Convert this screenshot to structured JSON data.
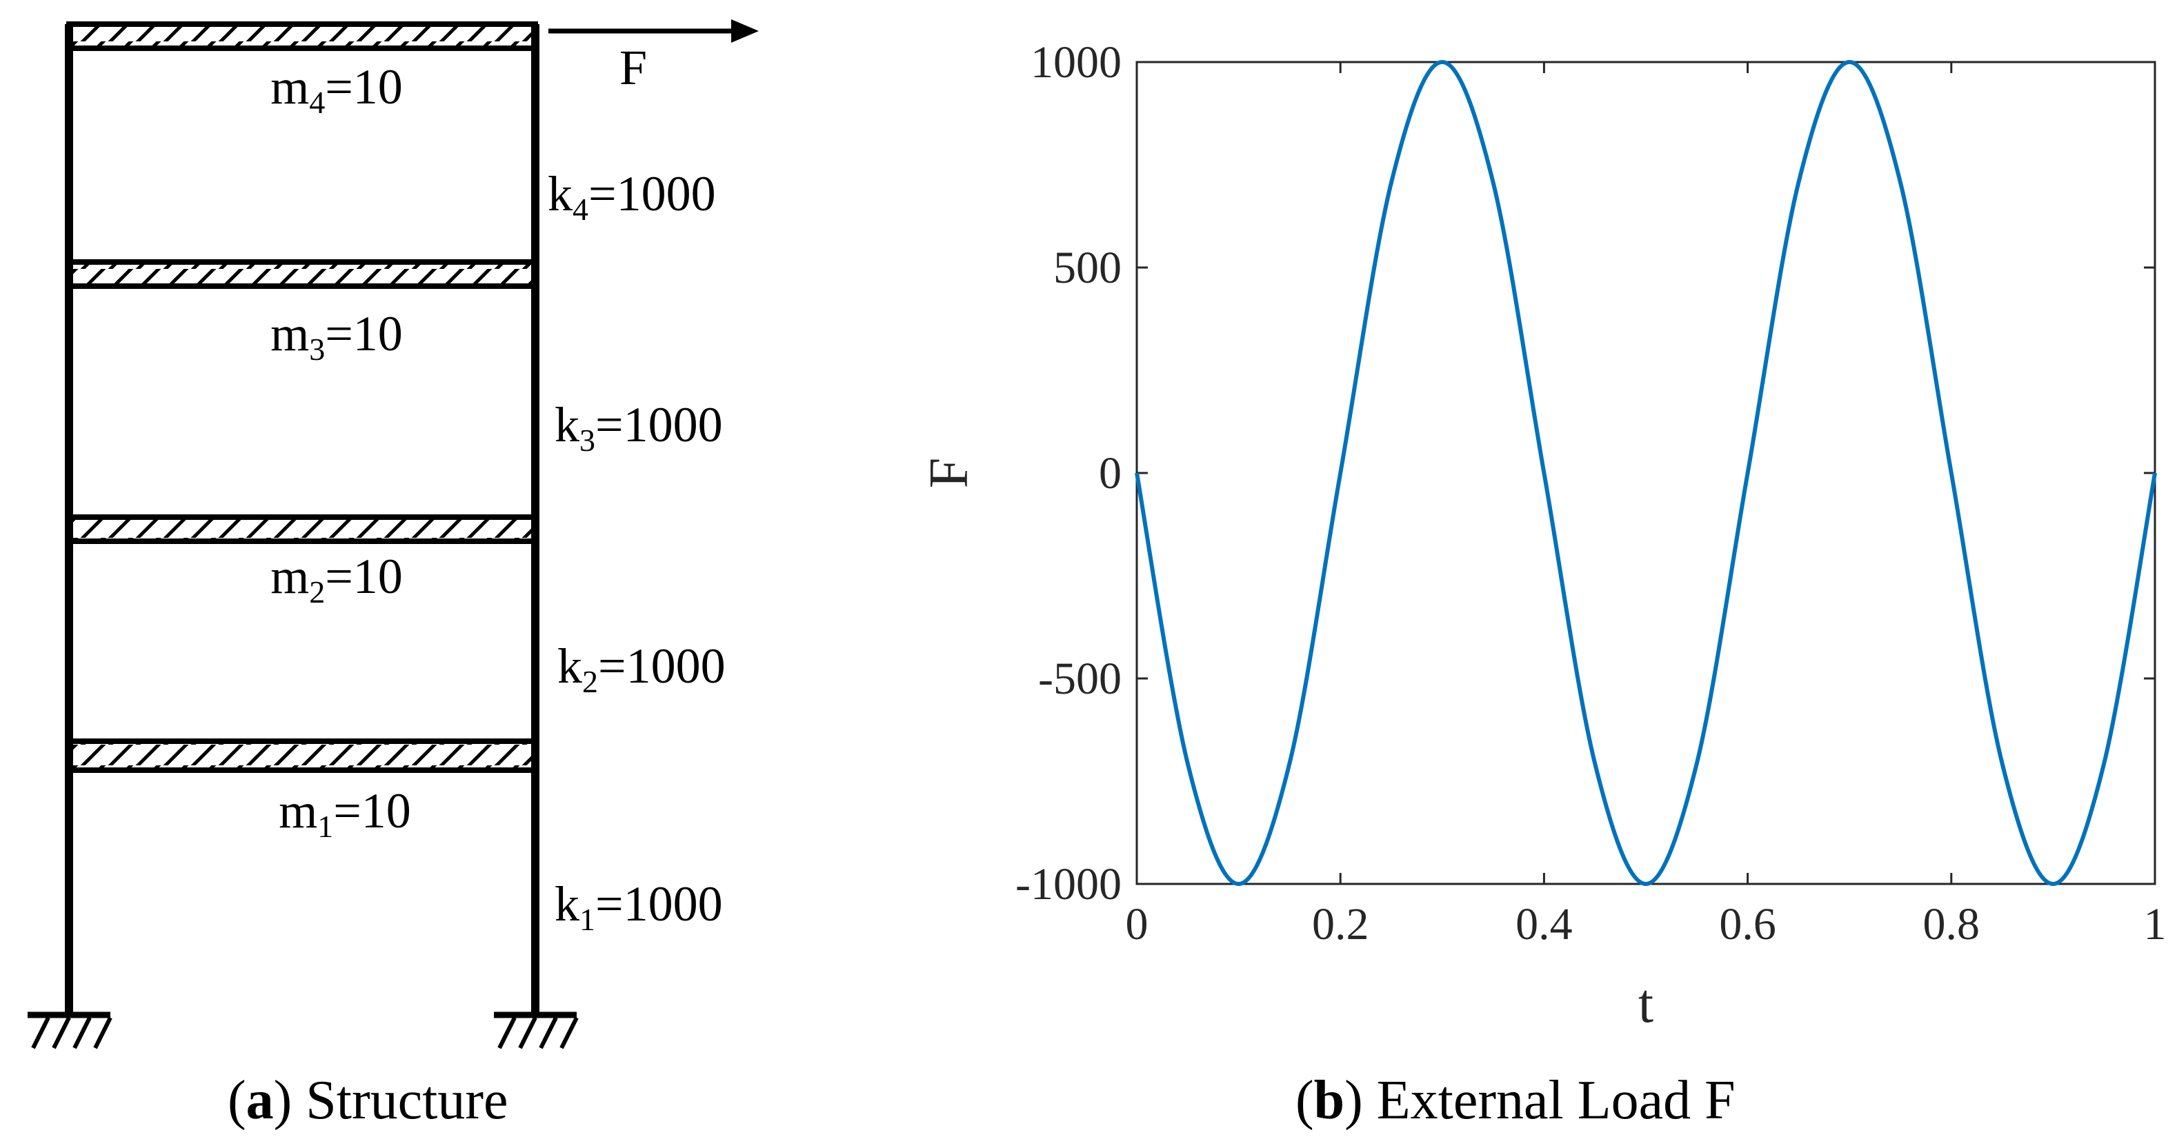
{
  "structure": {
    "caption_letter": "a",
    "caption_text": "Structure",
    "force_label": "F",
    "floors": [
      {
        "mass_symbol": "m",
        "mass_subscript": "4",
        "mass_value": "=10",
        "stiffness_symbol": "k",
        "stiffness_subscript": "4",
        "stiffness_value": "=1000"
      },
      {
        "mass_symbol": "m",
        "mass_subscript": "3",
        "mass_value": "=10",
        "stiffness_symbol": "k",
        "stiffness_subscript": "3",
        "stiffness_value": "=1000"
      },
      {
        "mass_symbol": "m",
        "mass_subscript": "2",
        "mass_value": "=10",
        "stiffness_symbol": "k",
        "stiffness_subscript": "2",
        "stiffness_value": "=1000"
      },
      {
        "mass_symbol": "m",
        "mass_subscript": "1",
        "mass_value": "=10",
        "stiffness_symbol": "k",
        "stiffness_subscript": "1",
        "stiffness_value": "=1000"
      }
    ]
  },
  "load_plot": {
    "caption_letter": "b",
    "caption_text": "External Load F",
    "chart_data": {
      "type": "line",
      "xlabel": "t",
      "ylabel": "F",
      "xlim": [
        0,
        1
      ],
      "ylim": [
        -1000,
        1000
      ],
      "x_ticks": [
        "0",
        "0.2",
        "0.4",
        "0.6",
        "0.8",
        "1"
      ],
      "y_ticks": [
        "1000",
        "500",
        "0",
        "-500",
        "-1000"
      ],
      "grid": false,
      "series": [
        {
          "color": "#0072BD",
          "x": [
            0,
            0.05,
            0.1,
            0.15,
            0.2,
            0.25,
            0.3,
            0.35,
            0.4,
            0.45,
            0.5,
            0.55,
            0.6,
            0.65,
            0.7,
            0.75,
            0.8,
            0.85,
            0.9,
            0.95,
            1.0
          ],
          "y": [
            0,
            -707,
            -1000,
            -707,
            0,
            707,
            1000,
            707,
            0,
            -707,
            -1000,
            -707,
            0,
            707,
            1000,
            707,
            0,
            -707,
            -1000,
            -707,
            0
          ]
        }
      ]
    }
  },
  "colors": {
    "line": "#0072BD",
    "ink": "#000000",
    "axis": "#262626"
  }
}
